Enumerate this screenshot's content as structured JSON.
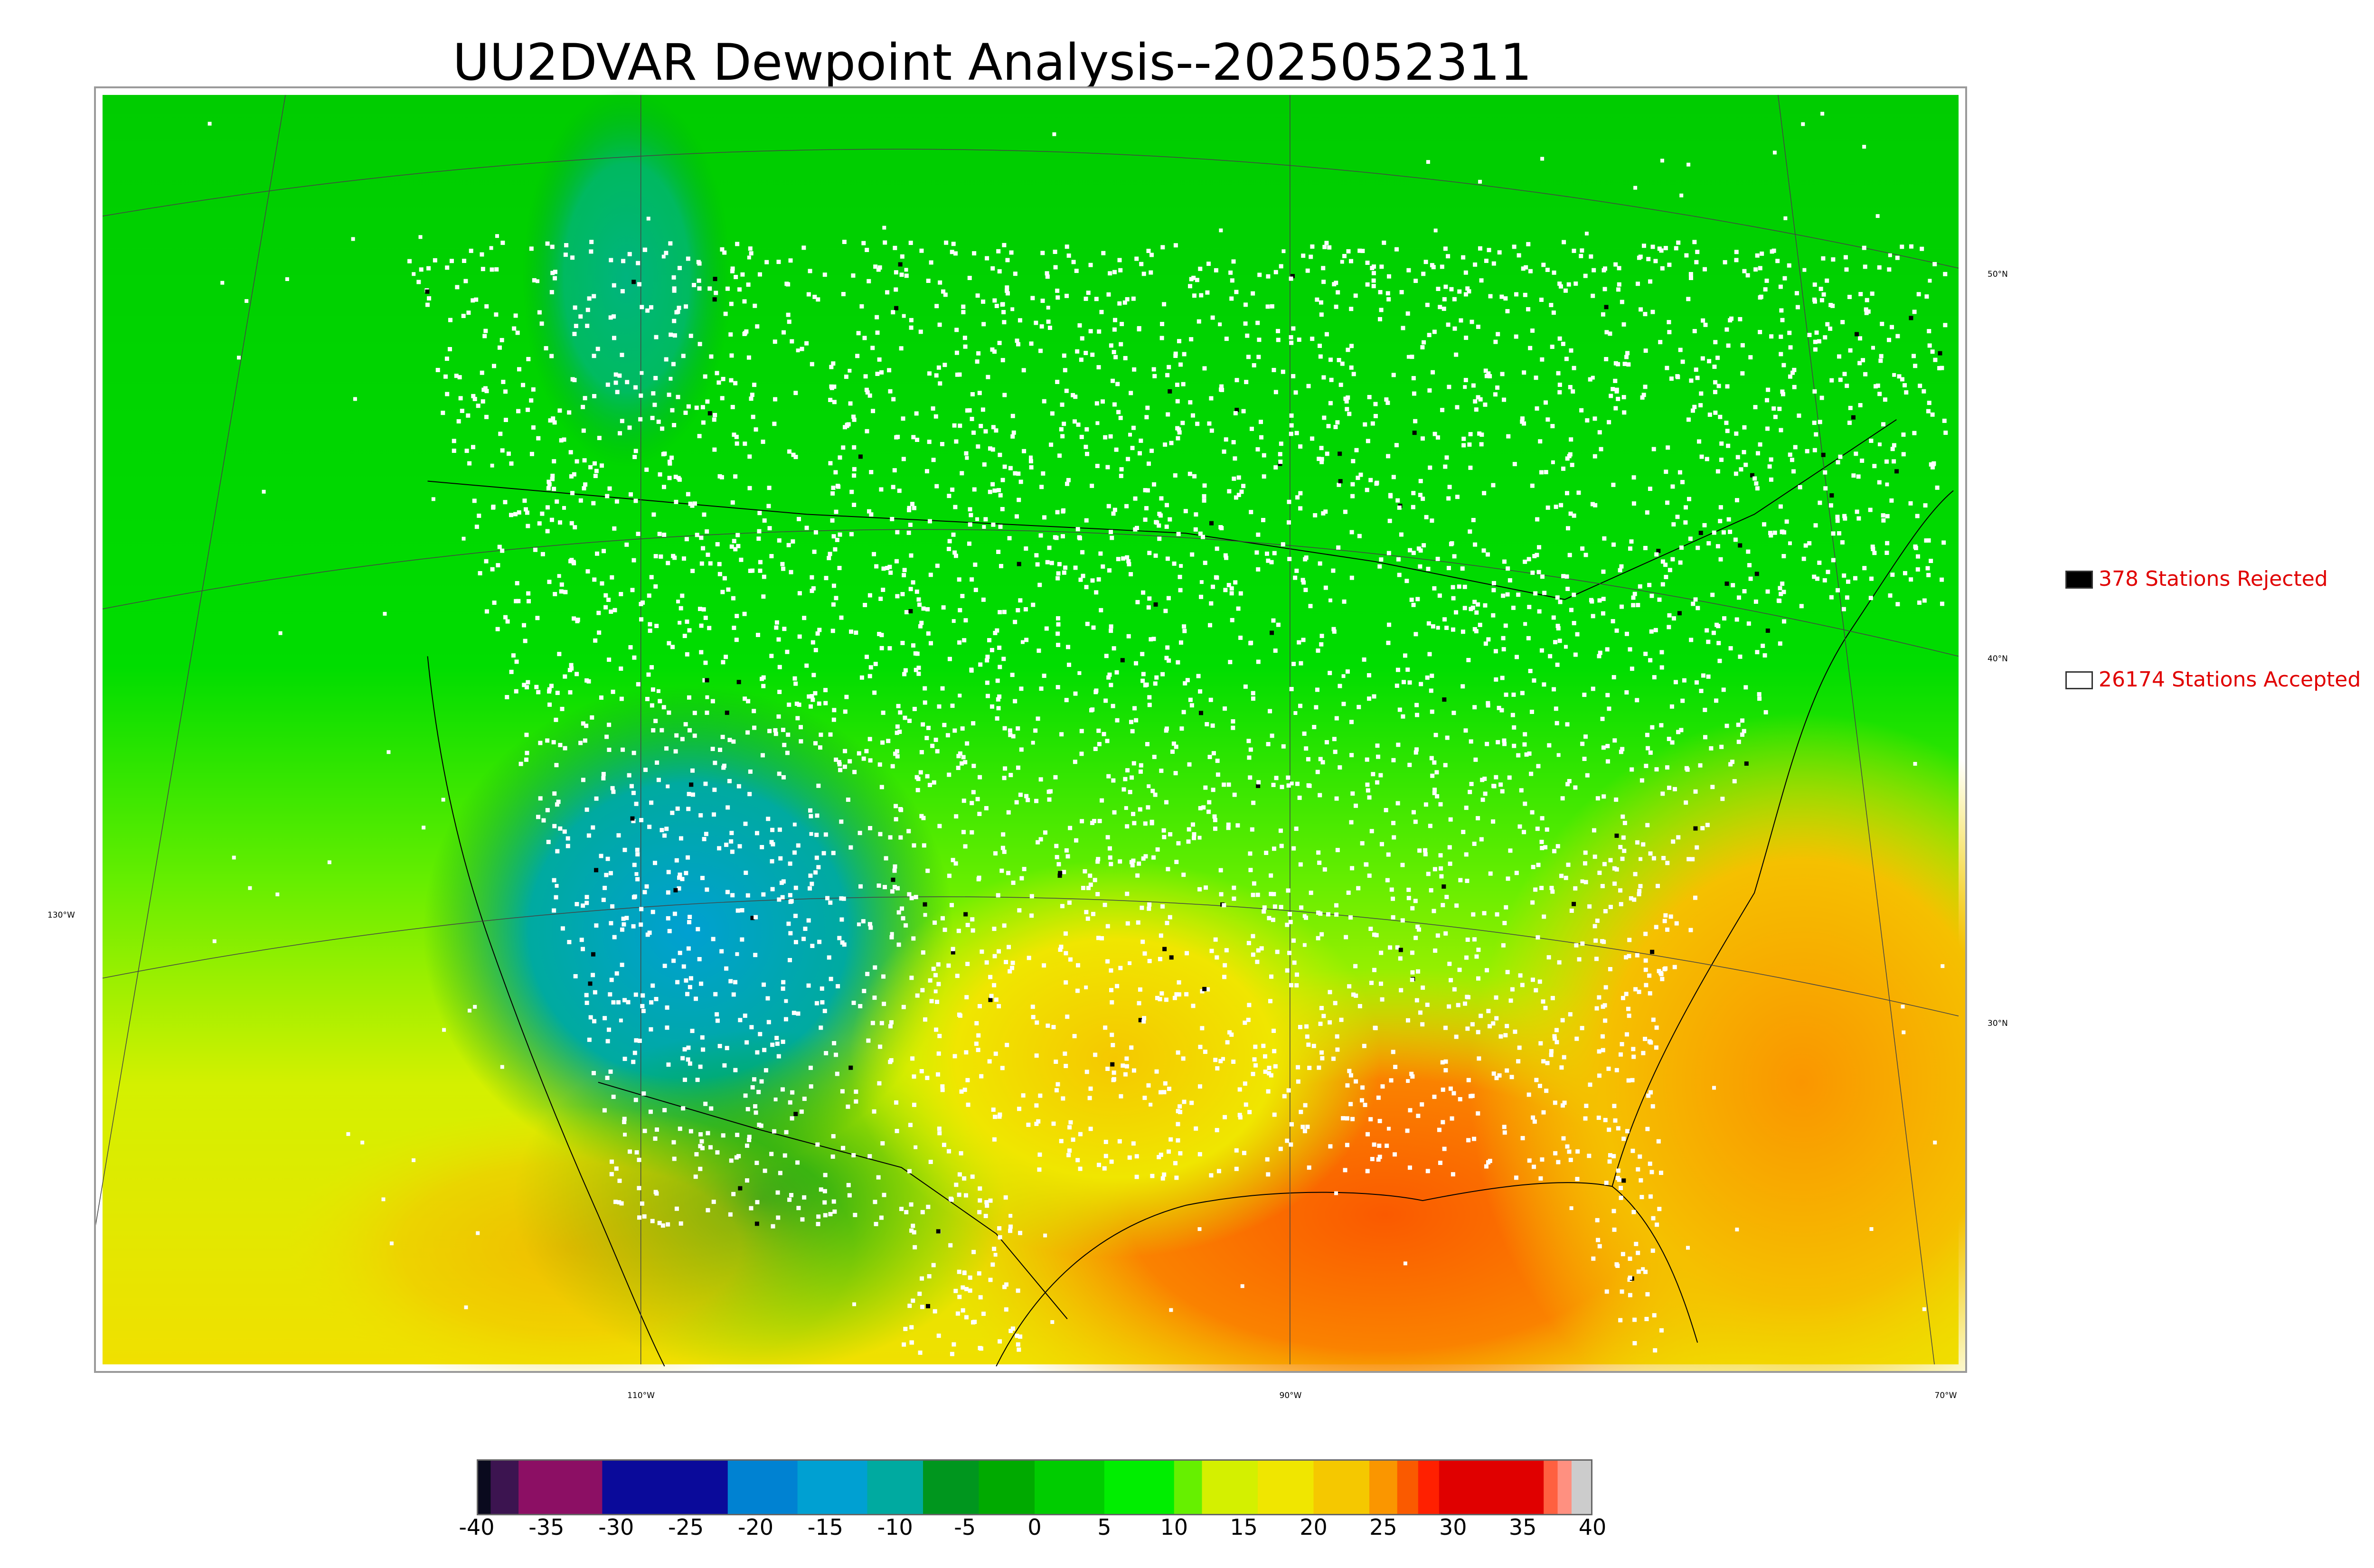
{
  "title": "UU2DVAR Dewpoint Analysis--2025052311",
  "map": {
    "lat_labels": [
      "50°N",
      "40°N",
      "30°N"
    ],
    "lon_labels": [
      "130°W",
      "110°W",
      "90°W",
      "70°W"
    ]
  },
  "legend": {
    "rejected": {
      "count_label": "378 Stations Rejected",
      "color": "#000000"
    },
    "accepted": {
      "count_label": "26174 Stations Accepted",
      "color": "#ffffff"
    },
    "text_color": "#e00000"
  },
  "colorbar": {
    "tick_labels": [
      "-40",
      "-35",
      "-30",
      "-25",
      "-20",
      "-15",
      "-10",
      "-5",
      "0",
      "5",
      "10",
      "15",
      "20",
      "25",
      "30",
      "35",
      "40"
    ],
    "range": [
      -40,
      40
    ],
    "colors": [
      {
        "from": -40,
        "to": -39,
        "color": "#0a0a1e"
      },
      {
        "from": -39,
        "to": -37,
        "color": "#3c1450"
      },
      {
        "from": -37,
        "to": -31,
        "color": "#8c0f64"
      },
      {
        "from": -31,
        "to": -22,
        "color": "#0a0a9a"
      },
      {
        "from": -22,
        "to": -17,
        "color": "#0082d2"
      },
      {
        "from": -17,
        "to": -12,
        "color": "#00a0d2"
      },
      {
        "from": -12,
        "to": -8,
        "color": "#00aaa0"
      },
      {
        "from": -8,
        "to": -4,
        "color": "#00961e"
      },
      {
        "from": -4,
        "to": 0,
        "color": "#00aa00"
      },
      {
        "from": 0,
        "to": 5,
        "color": "#00cc00"
      },
      {
        "from": 5,
        "to": 10,
        "color": "#00ee00"
      },
      {
        "from": 10,
        "to": 12,
        "color": "#66f000"
      },
      {
        "from": 12,
        "to": 16,
        "color": "#d4f000"
      },
      {
        "from": 16,
        "to": 20,
        "color": "#f0e600"
      },
      {
        "from": 20,
        "to": 24,
        "color": "#f5c800"
      },
      {
        "from": 24,
        "to": 26,
        "color": "#fa9600"
      },
      {
        "from": 26,
        "to": 27.5,
        "color": "#fa5a00"
      },
      {
        "from": 27.5,
        "to": 29,
        "color": "#ff2000"
      },
      {
        "from": 29,
        "to": 36.5,
        "color": "#e00000"
      },
      {
        "from": 36.5,
        "to": 37.5,
        "color": "#ff6040"
      },
      {
        "from": 37.5,
        "to": 38.5,
        "color": "#ff9080"
      },
      {
        "from": 38.5,
        "to": 40,
        "color": "#cccccc"
      }
    ]
  }
}
